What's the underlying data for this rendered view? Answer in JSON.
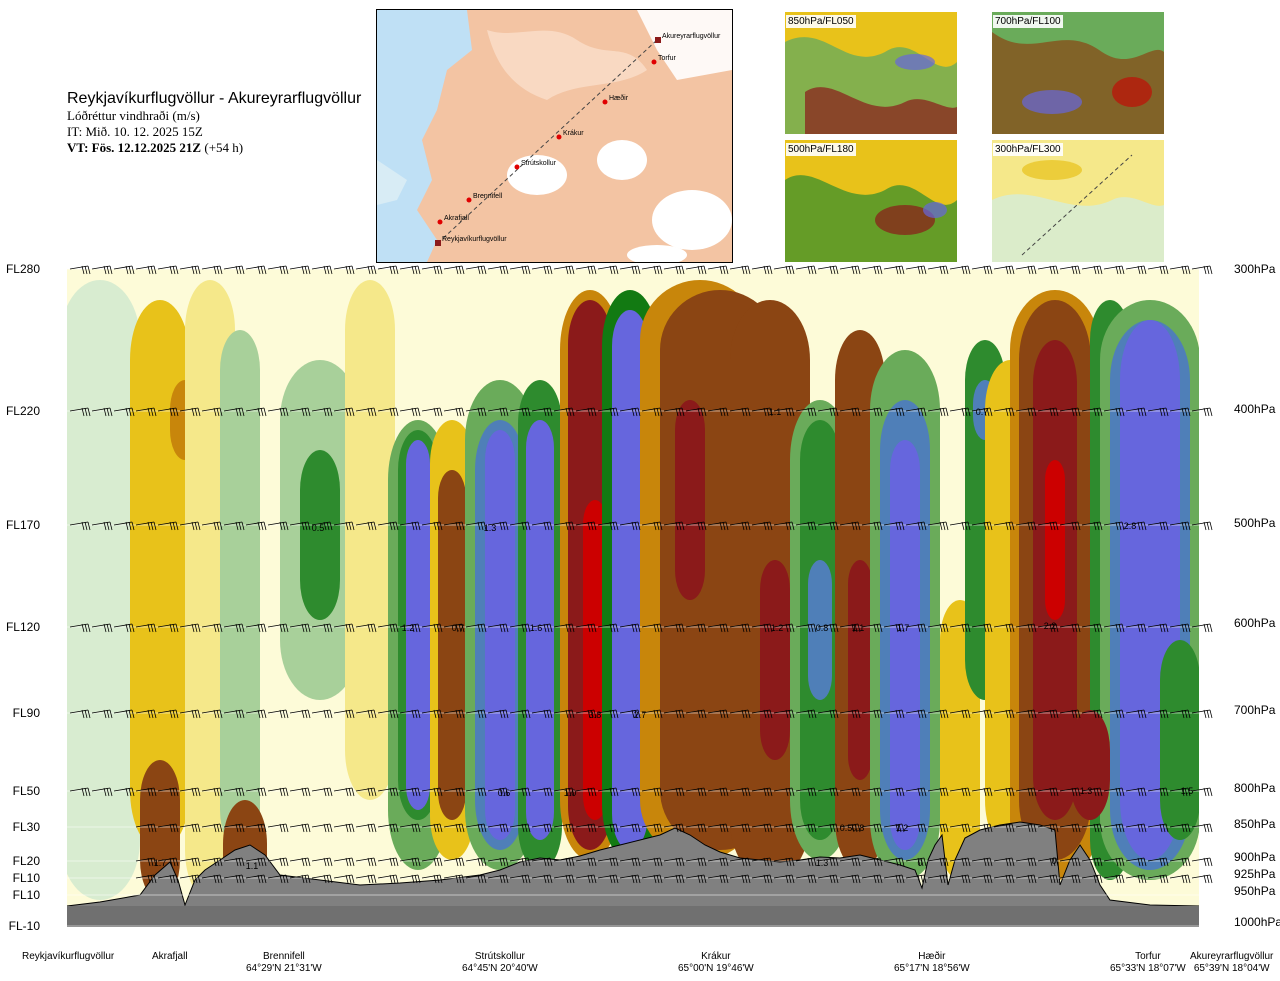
{
  "title": {
    "route": "Reykjavíkurflugvöllur - Akureyrarflugvöllur",
    "parameter": "Lóðréttur vindhraði (m/s)",
    "issue_time": "IT: Mið. 10. 12. 2025 15Z",
    "valid_time_bold": "VT: Fös. 12.12.2025 21Z",
    "valid_time_lead": "(+54 h)"
  },
  "route_map": {
    "points": [
      {
        "name": "Akureyrarflugvöllur",
        "kind": "airport"
      },
      {
        "name": "Torfur",
        "kind": "waypoint"
      },
      {
        "name": "Hæðir",
        "kind": "waypoint"
      },
      {
        "name": "Krákur",
        "kind": "waypoint"
      },
      {
        "name": "Strútskollur",
        "kind": "waypoint"
      },
      {
        "name": "Brennifell",
        "kind": "waypoint"
      },
      {
        "name": "Akrafjall",
        "kind": "waypoint"
      },
      {
        "name": "Reykjavíkurflugvöllur",
        "kind": "airport"
      }
    ]
  },
  "thumbnails": [
    {
      "label": "850hPa/FL050"
    },
    {
      "label": "700hPa/FL100"
    },
    {
      "label": "500hPa/FL180"
    },
    {
      "label": "300hPa/FL300"
    }
  ],
  "flight_levels": [
    "FL280",
    "FL220",
    "FL170",
    "FL120",
    "FL90",
    "FL50",
    "FL30",
    "FL20",
    "FL10",
    "FL10",
    "FL-10"
  ],
  "pressure_levels": [
    "300hPa",
    "400hPa",
    "500hPa",
    "600hPa",
    "700hPa",
    "800hPa",
    "850hPa",
    "900hPa",
    "925hPa",
    "950hPa",
    "1000hPa"
  ],
  "contour_labels": [
    "1.1",
    "0.7",
    "0.5",
    "1.3",
    "2.8",
    "1.2",
    "0.7",
    "1.6",
    "1.2",
    "0.8",
    "1.1",
    "1.7",
    "2.2",
    "3.8",
    "2.7",
    "0.6",
    "1.0",
    "0.5",
    "1.2",
    "1.3",
    "1.5",
    "1.7",
    "1.3",
    "0.8",
    "1.1",
    "0",
    "0"
  ],
  "locations": [
    {
      "name": "Reykjavíkurflugvöllur",
      "coord": ""
    },
    {
      "name": "Akrafjall",
      "coord": ""
    },
    {
      "name": "Brennifell",
      "coord": "64°29'N 21°31'W"
    },
    {
      "name": "Strútskollur",
      "coord": "64°45'N 20°40'W"
    },
    {
      "name": "Krákur",
      "coord": "65°00'N 19°46'W"
    },
    {
      "name": "Hæðir",
      "coord": "65°17'N 18°56'W"
    },
    {
      "name": "Torfur",
      "coord": "65°33'N 18°07'W"
    },
    {
      "name": "Akureyrarflugvöllur",
      "coord": "65°39'N 18°04'W"
    }
  ],
  "colors": {
    "strong_up": "#cc0000",
    "up3": "#8b1a1a",
    "up2": "#8b4513",
    "up1": "#c8860b",
    "up0": "#e8c21a",
    "weak": "#f5e88a",
    "neutral": "#fdfbd8",
    "weak_down": "#d8ecd0",
    "down0": "#a8d09a",
    "down1": "#6aab5a",
    "down2": "#2e8b2e",
    "down3": "#127a12",
    "down4": "#4f7fb8",
    "down5": "#6666dd",
    "terrain": "#808080",
    "sea": "#bfe0f5",
    "land": "#f5c9a8"
  }
}
